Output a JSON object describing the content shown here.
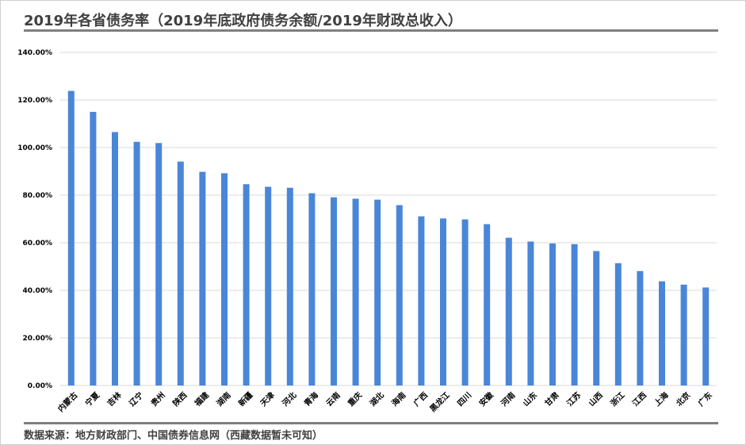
{
  "title": "2019年各省债务率（2019年底政府债务余额/2019年财政总收入）",
  "source": "数据来源：地方财政部门、中国债券信息网（西藏数据暂未可知）",
  "colors": {
    "bar": "#4a86d8",
    "grid": "#d9d9d9",
    "rule": "#7f7f7f",
    "text": "#404040"
  },
  "chart_data": {
    "type": "bar",
    "title": "2019年各省债务率（2019年底政府债务余额/2019年财政总收入）",
    "xlabel": "",
    "ylabel": "",
    "ylim": [
      0,
      140
    ],
    "yticks": [
      "0.00%",
      "20.00%",
      "40.00%",
      "60.00%",
      "80.00%",
      "100.00%",
      "120.00%",
      "140.00%"
    ],
    "grid": true,
    "legend": "none",
    "categories": [
      "内蒙古",
      "宁夏",
      "吉林",
      "辽宁",
      "贵州",
      "陕西",
      "福建",
      "湖南",
      "新疆",
      "天津",
      "河北",
      "青海",
      "云南",
      "重庆",
      "湖北",
      "海南",
      "广西",
      "黑龙江",
      "四川",
      "安徽",
      "河南",
      "山东",
      "甘肃",
      "江苏",
      "山西",
      "浙江",
      "江西",
      "上海",
      "北京",
      "广东"
    ],
    "values": [
      123.8,
      115.0,
      106.5,
      102.4,
      101.9,
      94.1,
      89.8,
      89.2,
      84.6,
      83.5,
      83.1,
      80.8,
      79.1,
      78.5,
      78.1,
      75.8,
      71.1,
      70.2,
      69.8,
      67.8,
      62.1,
      60.5,
      59.7,
      59.4,
      56.5,
      51.4,
      48.1,
      43.8,
      42.4,
      41.2
    ]
  }
}
